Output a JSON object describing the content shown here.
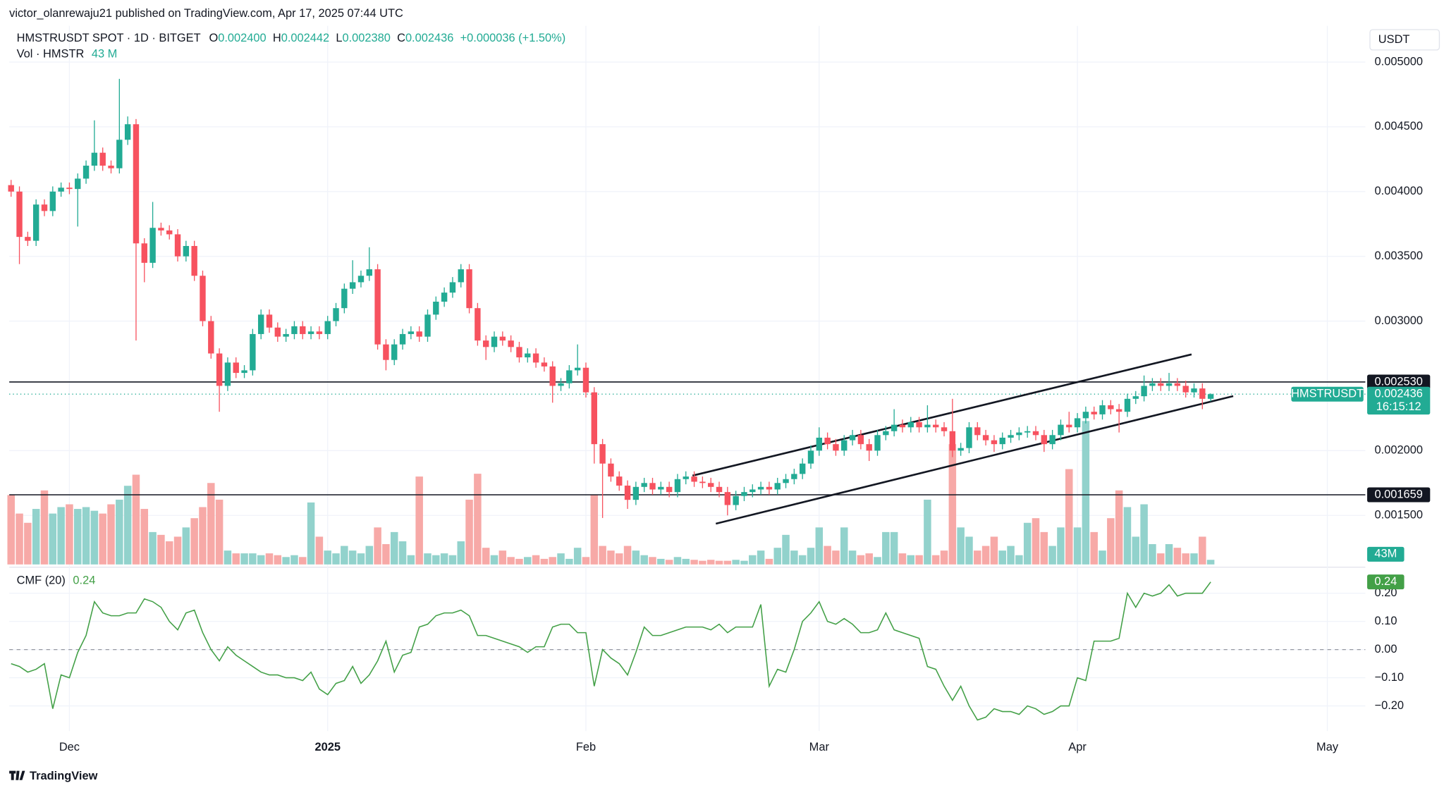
{
  "header": {
    "published_by": "victor_olanrewaju21 published on TradingView.com, Apr 17, 2025 07:44 UTC"
  },
  "chart_data": {
    "type": "candlestick",
    "title": "HMSTRUSDT SPOT · 1D · BITGET",
    "ohlc_legend": [
      {
        "key": "O",
        "text": "0.002400"
      },
      {
        "key": "H",
        "text": "0.002442"
      },
      {
        "key": "L",
        "text": "0.002380"
      },
      {
        "key": "C",
        "text": "0.002436"
      }
    ],
    "change": "+0.000036 (+1.50%)",
    "currency": "USDT",
    "up_color": "#22ab94",
    "down_color": "#f7525f",
    "open": [
      0.00405,
      0.004,
      0.00365,
      0.00362,
      0.0039,
      0.00385,
      0.004,
      0.00403,
      0.00402,
      0.0041,
      0.0042,
      0.0043,
      0.0042,
      0.00418,
      0.0044,
      0.00452,
      0.0036,
      0.00345,
      0.00372,
      0.0037,
      0.00367,
      0.0035,
      0.00358,
      0.00335,
      0.003,
      0.00275,
      0.0025,
      0.00268,
      0.0026,
      0.00262,
      0.0029,
      0.00305,
      0.00295,
      0.00288,
      0.0029,
      0.00296,
      0.0029,
      0.00292,
      0.0029,
      0.003,
      0.0031,
      0.00325,
      0.0033,
      0.00335,
      0.0034,
      0.00282,
      0.0027,
      0.00282,
      0.0029,
      0.00292,
      0.00288,
      0.00305,
      0.00315,
      0.00322,
      0.0033,
      0.0034,
      0.0031,
      0.00285,
      0.0028,
      0.00288,
      0.00285,
      0.0028,
      0.00272,
      0.00275,
      0.00268,
      0.00265,
      0.0025,
      0.00252,
      0.00262,
      0.00264,
      0.00245,
      0.00205,
      0.0019,
      0.0018,
      0.00173,
      0.00162,
      0.00172,
      0.00175,
      0.0017,
      0.00172,
      0.00168,
      0.00178,
      0.0018,
      0.00176,
      0.00175,
      0.00172,
      0.00168,
      0.00158,
      0.00165,
      0.00168,
      0.0017,
      0.00172,
      0.0017,
      0.00175,
      0.00178,
      0.00182,
      0.0019,
      0.002,
      0.0021,
      0.00205,
      0.002,
      0.00208,
      0.00212,
      0.00205,
      0.002,
      0.00212,
      0.00215,
      0.0022,
      0.00218,
      0.00222,
      0.00218,
      0.0022,
      0.00218,
      0.00215,
      0.002,
      0.00202,
      0.00218,
      0.00212,
      0.00208,
      0.00205,
      0.0021,
      0.00212,
      0.00214,
      0.00215,
      0.00212,
      0.00205,
      0.00212,
      0.0022,
      0.00218,
      0.00225,
      0.0023,
      0.00228,
      0.00235,
      0.00232,
      0.0023,
      0.0024,
      0.00242,
      0.0025,
      0.00252,
      0.0025,
      0.00252,
      0.0025,
      0.00245,
      0.00248,
      0.0024
    ],
    "high": [
      0.00409,
      0.00404,
      0.00369,
      0.00394,
      0.00394,
      0.00404,
      0.00407,
      0.00407,
      0.00414,
      0.00424,
      0.00455,
      0.00434,
      0.00424,
      0.00487,
      0.00458,
      0.00456,
      0.00364,
      0.00392,
      0.00376,
      0.00374,
      0.00371,
      0.00362,
      0.00362,
      0.00339,
      0.00304,
      0.00279,
      0.00272,
      0.00272,
      0.00266,
      0.00294,
      0.00309,
      0.00309,
      0.00299,
      0.00294,
      0.003,
      0.003,
      0.00296,
      0.00296,
      0.00304,
      0.00314,
      0.00329,
      0.00347,
      0.00339,
      0.00357,
      0.00344,
      0.00286,
      0.00286,
      0.00294,
      0.00296,
      0.00296,
      0.00309,
      0.00319,
      0.00326,
      0.00334,
      0.00344,
      0.00344,
      0.00314,
      0.00289,
      0.00292,
      0.00292,
      0.00289,
      0.00284,
      0.00279,
      0.00279,
      0.00272,
      0.00269,
      0.00256,
      0.00266,
      0.00282,
      0.00268,
      0.00249,
      0.00209,
      0.00194,
      0.00184,
      0.00177,
      0.00176,
      0.00179,
      0.00179,
      0.00176,
      0.00176,
      0.00182,
      0.00184,
      0.00184,
      0.0018,
      0.00179,
      0.00176,
      0.00172,
      0.00169,
      0.00172,
      0.00174,
      0.00176,
      0.00176,
      0.00179,
      0.00182,
      0.00186,
      0.00194,
      0.00204,
      0.00218,
      0.00214,
      0.00209,
      0.00212,
      0.00216,
      0.00216,
      0.00209,
      0.00216,
      0.00219,
      0.00232,
      0.00224,
      0.00226,
      0.00226,
      0.00235,
      0.00224,
      0.00222,
      0.0024,
      0.00206,
      0.00222,
      0.00222,
      0.00216,
      0.00212,
      0.00214,
      0.00216,
      0.00218,
      0.00219,
      0.00219,
      0.00216,
      0.00216,
      0.00224,
      0.0023,
      0.00229,
      0.00234,
      0.00234,
      0.00239,
      0.00239,
      0.00236,
      0.00244,
      0.00246,
      0.00258,
      0.00256,
      0.00256,
      0.0026,
      0.00256,
      0.00254,
      0.00252,
      0.00252,
      0.002442
    ],
    "low": [
      0.00396,
      0.00344,
      0.00358,
      0.00358,
      0.00381,
      0.00381,
      0.00396,
      0.00398,
      0.00373,
      0.00406,
      0.00416,
      0.00416,
      0.00414,
      0.00414,
      0.00436,
      0.00285,
      0.0033,
      0.00341,
      0.00366,
      0.00363,
      0.00346,
      0.00346,
      0.00331,
      0.00296,
      0.00271,
      0.0023,
      0.00246,
      0.00256,
      0.00256,
      0.00258,
      0.00286,
      0.00291,
      0.00284,
      0.00284,
      0.00286,
      0.00286,
      0.00286,
      0.00286,
      0.00286,
      0.00296,
      0.00306,
      0.00321,
      0.00326,
      0.00331,
      0.00278,
      0.00262,
      0.00266,
      0.00278,
      0.00286,
      0.00284,
      0.00284,
      0.00301,
      0.00311,
      0.00318,
      0.00326,
      0.00306,
      0.00281,
      0.0027,
      0.00276,
      0.00281,
      0.00276,
      0.00268,
      0.00268,
      0.00264,
      0.00261,
      0.00237,
      0.00246,
      0.00248,
      0.00258,
      0.00241,
      0.0019,
      0.00148,
      0.00176,
      0.00169,
      0.00155,
      0.00158,
      0.00168,
      0.00166,
      0.00166,
      0.00164,
      0.00164,
      0.00174,
      0.00172,
      0.00171,
      0.00168,
      0.00164,
      0.0015,
      0.00154,
      0.00161,
      0.00164,
      0.00166,
      0.00166,
      0.00166,
      0.00171,
      0.00174,
      0.00178,
      0.00186,
      0.00196,
      0.00201,
      0.00196,
      0.00196,
      0.00204,
      0.00201,
      0.00192,
      0.00196,
      0.00208,
      0.00211,
      0.00214,
      0.00214,
      0.00214,
      0.00214,
      0.00214,
      0.00211,
      0.00195,
      0.00196,
      0.00198,
      0.00208,
      0.00204,
      0.00199,
      0.00201,
      0.00206,
      0.00208,
      0.0021,
      0.00208,
      0.00199,
      0.00201,
      0.00208,
      0.00214,
      0.00214,
      0.00221,
      0.00224,
      0.00224,
      0.00228,
      0.00214,
      0.00226,
      0.00236,
      0.00238,
      0.00246,
      0.00246,
      0.00246,
      0.00246,
      0.00241,
      0.00241,
      0.00232,
      0.00238
    ],
    "close": [
      0.004,
      0.00365,
      0.00362,
      0.0039,
      0.00385,
      0.004,
      0.00403,
      0.00402,
      0.0041,
      0.0042,
      0.0043,
      0.0042,
      0.00418,
      0.0044,
      0.00452,
      0.0036,
      0.00345,
      0.00372,
      0.0037,
      0.00367,
      0.0035,
      0.00358,
      0.00335,
      0.003,
      0.00275,
      0.0025,
      0.00268,
      0.0026,
      0.00262,
      0.0029,
      0.00305,
      0.00295,
      0.00288,
      0.0029,
      0.00296,
      0.0029,
      0.00292,
      0.0029,
      0.003,
      0.0031,
      0.00325,
      0.0033,
      0.00335,
      0.0034,
      0.00282,
      0.0027,
      0.00282,
      0.0029,
      0.00292,
      0.00288,
      0.00305,
      0.00315,
      0.00322,
      0.0033,
      0.0034,
      0.0031,
      0.00285,
      0.0028,
      0.00288,
      0.00285,
      0.0028,
      0.00272,
      0.00275,
      0.00268,
      0.00265,
      0.0025,
      0.00252,
      0.00262,
      0.00264,
      0.00245,
      0.00205,
      0.0019,
      0.0018,
      0.00173,
      0.00162,
      0.00172,
      0.00175,
      0.0017,
      0.00172,
      0.00168,
      0.00178,
      0.0018,
      0.00176,
      0.00175,
      0.00172,
      0.00168,
      0.00158,
      0.00165,
      0.00168,
      0.0017,
      0.00172,
      0.0017,
      0.00175,
      0.00178,
      0.00182,
      0.0019,
      0.002,
      0.0021,
      0.00205,
      0.002,
      0.00208,
      0.00212,
      0.00205,
      0.002,
      0.00212,
      0.00215,
      0.0022,
      0.00218,
      0.00222,
      0.00218,
      0.0022,
      0.00218,
      0.00215,
      0.002,
      0.00202,
      0.00218,
      0.00212,
      0.00208,
      0.00205,
      0.0021,
      0.00212,
      0.00214,
      0.00215,
      0.00212,
      0.00205,
      0.00212,
      0.0022,
      0.00218,
      0.00225,
      0.0023,
      0.00228,
      0.00235,
      0.00232,
      0.0023,
      0.0024,
      0.00242,
      0.0025,
      0.00252,
      0.0025,
      0.00252,
      0.0025,
      0.00245,
      0.00248,
      0.0024,
      0.002436
    ],
    "volume": {
      "name": "Vol · HMSTR",
      "label": "43 M",
      "badge": "43M",
      "up_color": "#92d2cc",
      "down_color": "#f7a9a7",
      "badge_color": "#22ab94",
      "values": [
        645,
        473,
        387,
        516,
        688,
        473,
        533,
        559,
        516,
        533,
        499,
        473,
        559,
        602,
        731,
        834,
        516,
        301,
        275,
        215,
        258,
        344,
        430,
        533,
        757,
        602,
        129,
        103,
        103,
        103,
        86,
        103,
        86,
        69,
        86,
        69,
        576,
        258,
        129,
        103,
        172,
        129,
        103,
        172,
        344,
        189,
        301,
        215,
        86,
        817,
        103,
        86,
        103,
        86,
        215,
        602,
        843,
        155,
        86,
        129,
        69,
        52,
        69,
        86,
        52,
        69,
        103,
        52,
        155,
        69,
        645,
        172,
        129,
        103,
        172,
        129,
        86,
        69,
        52,
        43,
        69,
        52,
        43,
        34,
        43,
        34,
        34,
        43,
        34,
        86,
        129,
        52,
        155,
        275,
        129,
        86,
        155,
        344,
        172,
        129,
        344,
        129,
        86,
        103,
        69,
        301,
        301,
        103,
        86,
        86,
        602,
        86,
        129,
        1118,
        344,
        258,
        129,
        172,
        258,
        129,
        172,
        86,
        387,
        430,
        301,
        172,
        344,
        886,
        344,
        1333,
        301,
        129,
        430,
        688,
        533,
        258,
        559,
        189,
        103,
        189,
        155,
        103,
        103,
        258,
        43
      ]
    },
    "xlim": [
      -0.22,
      162.56
    ],
    "xticks": [
      {
        "value": 7,
        "label": "Dec"
      },
      {
        "value": 38,
        "label": "2025",
        "bold": true
      },
      {
        "value": 69,
        "label": "Feb"
      },
      {
        "value": 97,
        "label": "Mar"
      },
      {
        "value": 128,
        "label": "Apr"
      },
      {
        "value": 158,
        "label": "May"
      }
    ],
    "ylim": [
      0.001107,
      0.005279
    ],
    "yticks": [
      {
        "value": 0.0015,
        "label": "0.001500"
      },
      {
        "value": 0.002,
        "label": "0.002000"
      },
      {
        "value": 0.003,
        "label": "0.003000"
      },
      {
        "value": 0.0035,
        "label": "0.003500"
      },
      {
        "value": 0.004,
        "label": "0.004000"
      },
      {
        "value": 0.0045,
        "label": "0.004500"
      },
      {
        "value": 0.005,
        "label": "0.005000"
      }
    ],
    "grid": true,
    "hlines": [
      {
        "value": 0.00253,
        "label": "0.002530"
      },
      {
        "value": 0.001659,
        "label": "0.001659"
      }
    ],
    "last_price": {
      "value": 0.002436,
      "label": "0.002436"
    },
    "countdown": "16:15:12",
    "symbol_tag": "HMSTRUSDT",
    "trendlines": [
      {
        "x": [
          81.8,
          141.7
        ],
        "y": [
          0.001807,
          0.002743
        ]
      },
      {
        "x": [
          84.6,
          146.7
        ],
        "y": [
          0.001436,
          0.002421
        ]
      }
    ],
    "indicator": {
      "type": "line",
      "name": "CMF (20)",
      "value_label": "0.24",
      "color": "#43a047",
      "values": [
        -0.05,
        -0.06,
        -0.08,
        -0.07,
        -0.05,
        -0.21,
        -0.09,
        -0.1,
        -0.01,
        0.05,
        0.17,
        0.13,
        0.12,
        0.12,
        0.13,
        0.13,
        0.18,
        0.17,
        0.15,
        0.1,
        0.07,
        0.13,
        0.14,
        0.06,
        0,
        -0.04,
        0.01,
        -0.02,
        -0.04,
        -0.06,
        -0.08,
        -0.09,
        -0.09,
        -0.1,
        -0.1,
        -0.11,
        -0.08,
        -0.14,
        -0.16,
        -0.12,
        -0.11,
        -0.06,
        -0.12,
        -0.09,
        -0.04,
        0.03,
        -0.08,
        -0.02,
        -0.01,
        0.08,
        0.09,
        0.12,
        0.13,
        0.13,
        0.14,
        0.12,
        0.05,
        0.05,
        0.04,
        0.03,
        0.02,
        0.01,
        -0.01,
        0.01,
        0.01,
        0.08,
        0.09,
        0.09,
        0.06,
        0.06,
        -0.13,
        0,
        -0.03,
        -0.05,
        -0.09,
        -0.01,
        0.08,
        0.05,
        0.05,
        0.06,
        0.07,
        0.08,
        0.08,
        0.08,
        0.07,
        0.09,
        0.06,
        0.08,
        0.08,
        0.08,
        0.16,
        -0.13,
        -0.07,
        -0.08,
        0,
        0.1,
        0.13,
        0.17,
        0.1,
        0.09,
        0.11,
        0.09,
        0.06,
        0.06,
        0.07,
        0.13,
        0.07,
        0.06,
        0.05,
        0.04,
        -0.06,
        -0.07,
        -0.13,
        -0.18,
        -0.13,
        -0.2,
        -0.25,
        -0.24,
        -0.21,
        -0.22,
        -0.22,
        -0.23,
        -0.2,
        -0.21,
        -0.23,
        -0.22,
        -0.2,
        -0.2,
        -0.1,
        -0.11,
        0.03,
        0.03,
        0.03,
        0.04,
        0.2,
        0.15,
        0.2,
        0.19,
        0.2,
        0.23,
        0.19,
        0.2,
        0.2,
        0.2,
        0.24
      ],
      "ylim": [
        -0.289,
        0.289
      ],
      "yticks": [
        {
          "value": -0.2,
          "label": "−0.20"
        },
        {
          "value": -0.1,
          "label": "−0.10"
        },
        {
          "value": 0,
          "label": "0.00"
        },
        {
          "value": 0.1,
          "label": "0.10"
        },
        {
          "value": 0.2,
          "label": "0.20"
        }
      ],
      "zero_line": true
    }
  },
  "footer": "TradingView"
}
